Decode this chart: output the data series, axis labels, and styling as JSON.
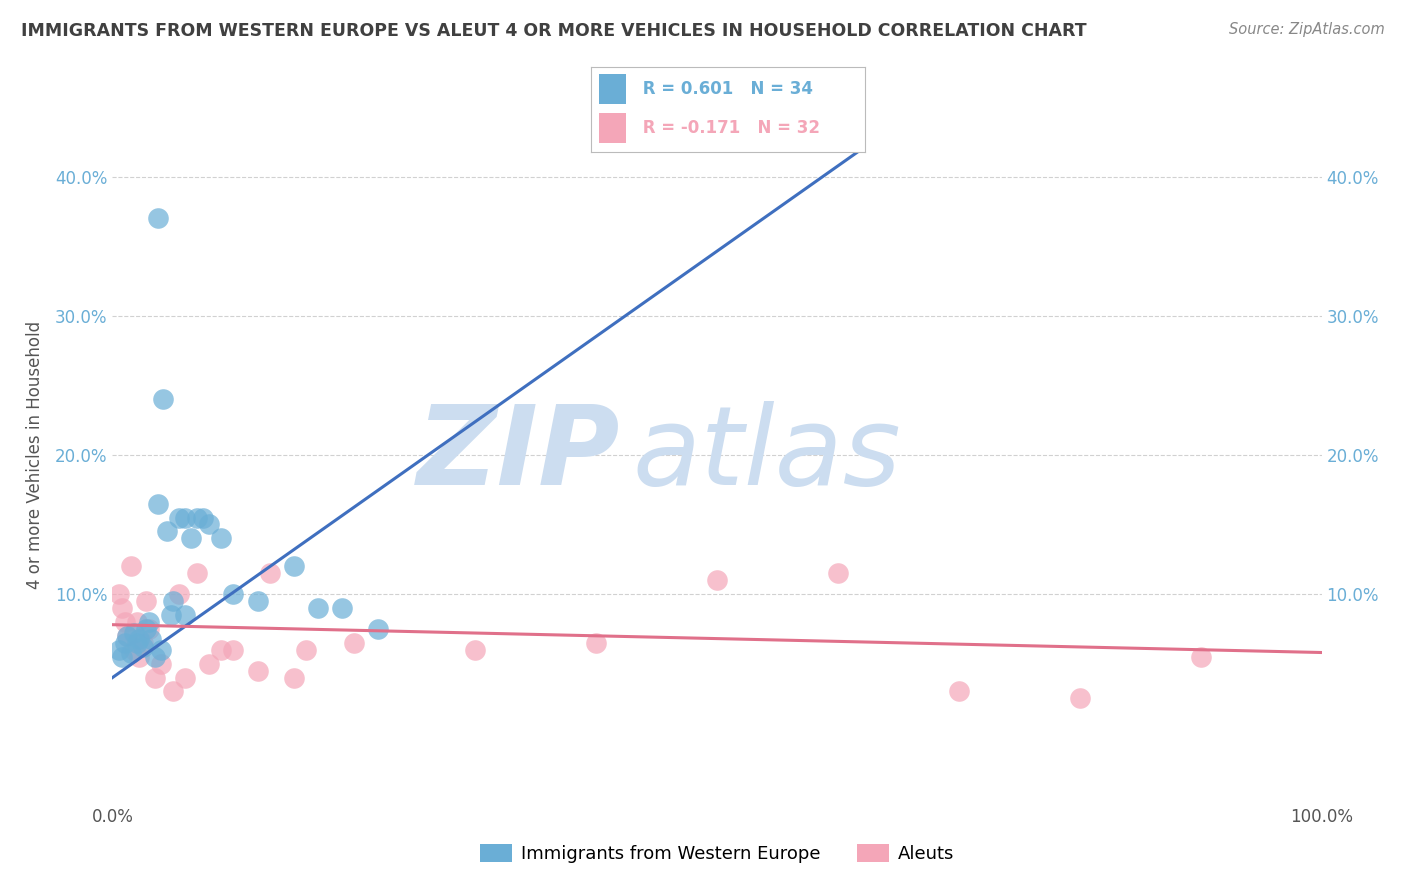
{
  "title": "IMMIGRANTS FROM WESTERN EUROPE VS ALEUT 4 OR MORE VEHICLES IN HOUSEHOLD CORRELATION CHART",
  "source": "Source: ZipAtlas.com",
  "ylabel": "4 or more Vehicles in Household",
  "xlim": [
    0.0,
    1.0
  ],
  "ylim": [
    -0.05,
    0.45
  ],
  "y_tick_vals": [
    0.1,
    0.2,
    0.3,
    0.4
  ],
  "y_tick_labels": [
    "10.0%",
    "20.0%",
    "30.0%",
    "40.0%"
  ],
  "x_tick_vals": [
    0.0,
    1.0
  ],
  "x_tick_labels": [
    "0.0%",
    "100.0%"
  ],
  "legend_labels": [
    "Immigrants from Western Europe",
    "Aleuts"
  ],
  "blue_R": "R = 0.601",
  "blue_N": "N = 34",
  "pink_R": "R = -0.171",
  "pink_N": "N = 32",
  "blue_color": "#6aaed6",
  "pink_color": "#f4a6b8",
  "line_blue": "#3f6fbf",
  "line_pink": "#e0708a",
  "watermark_zip": "ZIP",
  "watermark_atlas": "atlas",
  "watermark_color": "#ccddf0",
  "background": "#ffffff",
  "grid_color": "#cccccc",
  "title_color": "#404040",
  "blue_scatter_x": [
    0.005,
    0.008,
    0.01,
    0.012,
    0.015,
    0.018,
    0.02,
    0.022,
    0.025,
    0.028,
    0.03,
    0.032,
    0.035,
    0.038,
    0.04,
    0.042,
    0.045,
    0.048,
    0.05,
    0.055,
    0.06,
    0.065,
    0.07,
    0.075,
    0.08,
    0.09,
    0.1,
    0.12,
    0.15,
    0.17,
    0.19,
    0.22,
    0.038,
    0.06
  ],
  "blue_scatter_y": [
    0.06,
    0.055,
    0.065,
    0.07,
    0.058,
    0.072,
    0.065,
    0.068,
    0.062,
    0.075,
    0.08,
    0.068,
    0.055,
    0.37,
    0.06,
    0.24,
    0.145,
    0.085,
    0.095,
    0.155,
    0.155,
    0.14,
    0.155,
    0.155,
    0.15,
    0.14,
    0.1,
    0.095,
    0.12,
    0.09,
    0.09,
    0.075,
    0.165,
    0.085
  ],
  "pink_scatter_x": [
    0.005,
    0.008,
    0.01,
    0.012,
    0.015,
    0.018,
    0.02,
    0.022,
    0.025,
    0.028,
    0.03,
    0.035,
    0.04,
    0.05,
    0.06,
    0.08,
    0.1,
    0.12,
    0.15,
    0.2,
    0.3,
    0.4,
    0.5,
    0.6,
    0.7,
    0.8,
    0.9,
    0.055,
    0.07,
    0.09,
    0.13,
    0.16
  ],
  "pink_scatter_y": [
    0.1,
    0.09,
    0.08,
    0.07,
    0.12,
    0.06,
    0.08,
    0.055,
    0.065,
    0.095,
    0.075,
    0.04,
    0.05,
    0.03,
    0.04,
    0.05,
    0.06,
    0.045,
    0.04,
    0.065,
    0.06,
    0.065,
    0.11,
    0.115,
    0.03,
    0.025,
    0.055,
    0.1,
    0.115,
    0.06,
    0.115,
    0.06
  ],
  "blue_line_x": [
    0.0,
    0.62
  ],
  "blue_line_y": [
    0.04,
    0.42
  ],
  "pink_line_x": [
    0.0,
    1.0
  ],
  "pink_line_y": [
    0.078,
    0.058
  ]
}
